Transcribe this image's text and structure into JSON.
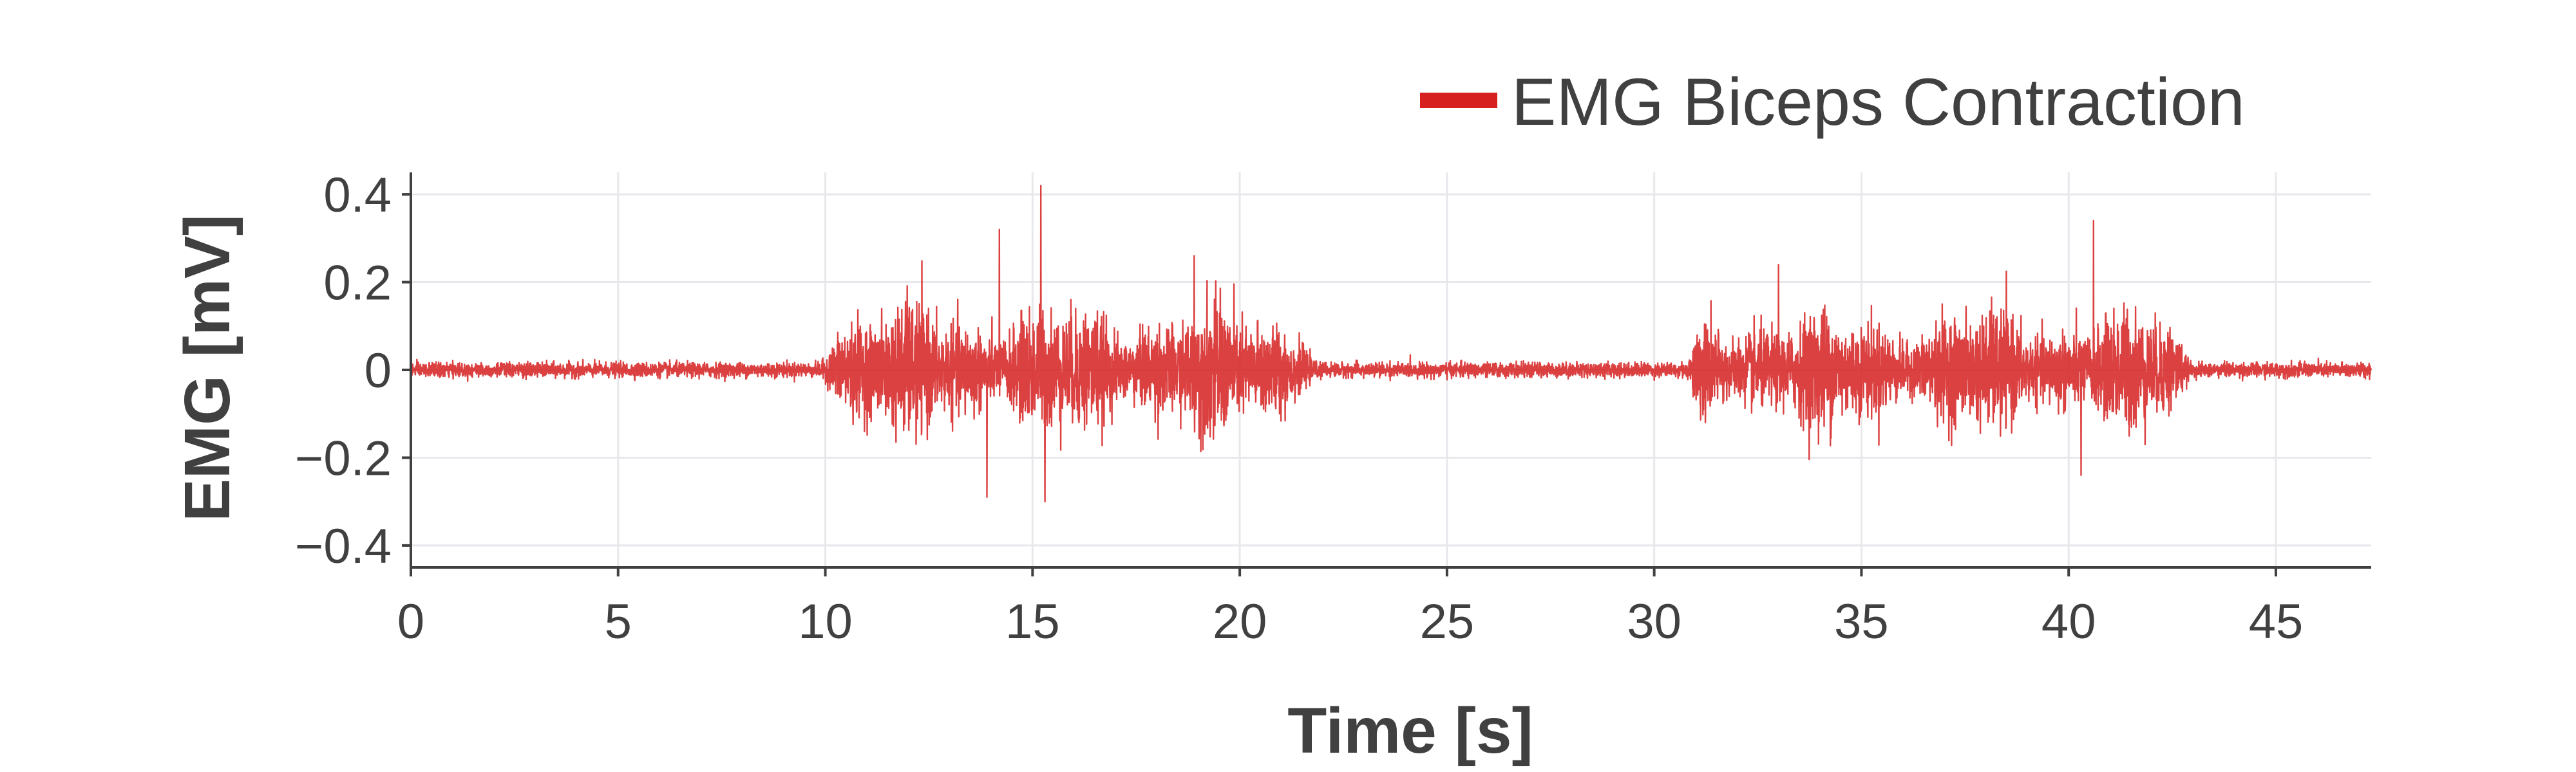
{
  "chart_data": {
    "type": "line",
    "xlabel": "Time [s]",
    "ylabel": "EMG [mV]",
    "xlim": [
      0,
      47.3
    ],
    "ylim": [
      -0.45,
      0.45
    ],
    "x_ticks": [
      0,
      5,
      10,
      15,
      20,
      25,
      30,
      35,
      40,
      45
    ],
    "x_tick_labels": [
      "0",
      "5",
      "10",
      "15",
      "20",
      "25",
      "30",
      "35",
      "40",
      "45"
    ],
    "y_ticks": [
      0.4,
      0.2,
      0,
      -0.2,
      -0.4
    ],
    "y_tick_labels": [
      "0.4",
      "0.2",
      "0",
      "−0.2",
      "−0.4"
    ],
    "grid": true,
    "legend_position": "top-right",
    "series": [
      {
        "name": "EMG Biceps Contraction",
        "color": "#d62020",
        "sample_rate_hz": 200,
        "baseline_amplitude_mV": 0.008,
        "bursts": [
          {
            "start_s": 10.4,
            "end_s": 21.3,
            "typical_amplitude_mV": 0.11,
            "max_mV": 0.42,
            "min_mV": -0.3
          },
          {
            "start_s": 31.3,
            "end_s": 42.4,
            "typical_amplitude_mV": 0.1,
            "max_mV": 0.34,
            "min_mV": -0.24
          }
        ],
        "peaks": [
          {
            "x": 15.2,
            "y": 0.42
          },
          {
            "x": 14.2,
            "y": 0.32
          },
          {
            "x": 15.3,
            "y": -0.3
          },
          {
            "x": 13.9,
            "y": -0.29
          },
          {
            "x": 40.6,
            "y": 0.34
          },
          {
            "x": 40.3,
            "y": -0.24
          },
          {
            "x": 33.0,
            "y": 0.24
          },
          {
            "x": 18.9,
            "y": 0.26
          }
        ]
      }
    ]
  }
}
